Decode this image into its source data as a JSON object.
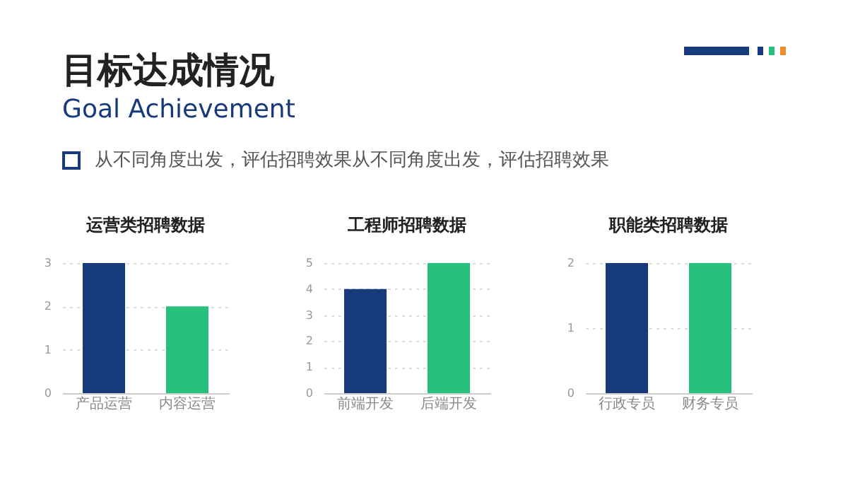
{
  "chart_data": [
    {
      "type": "other",
      "title": "目标达成情况",
      "subtitle": "Goal Achievement",
      "annotations": [
        "从不同角度出发，评估招聘效果从不同角度出发，评估招聘效果"
      ]
    },
    {
      "type": "bar",
      "title": "运营类招聘数据",
      "categories": [
        "产品运营",
        "内容运营"
      ],
      "values": [
        3,
        2
      ],
      "colors": [
        "#173a7c",
        "#26c17d"
      ],
      "ylim": [
        0,
        3
      ],
      "yticks": [
        0,
        1,
        2,
        3
      ],
      "grid": "y"
    },
    {
      "type": "bar",
      "title": "工程师招聘数据",
      "categories": [
        "前端开发",
        "后端开发"
      ],
      "values": [
        4,
        5
      ],
      "colors": [
        "#173a7c",
        "#26c17d"
      ],
      "ylim": [
        0,
        5
      ],
      "yticks": [
        0,
        1,
        2,
        3,
        4,
        5
      ],
      "grid": "y"
    },
    {
      "type": "bar",
      "title": "职能类招聘数据",
      "categories": [
        "行政专员",
        "财务专员"
      ],
      "values": [
        2,
        2
      ],
      "colors": [
        "#173a7c",
        "#26c17d"
      ],
      "ylim": [
        0,
        2
      ],
      "yticks": [
        0,
        1,
        2
      ],
      "grid": "y"
    }
  ]
}
